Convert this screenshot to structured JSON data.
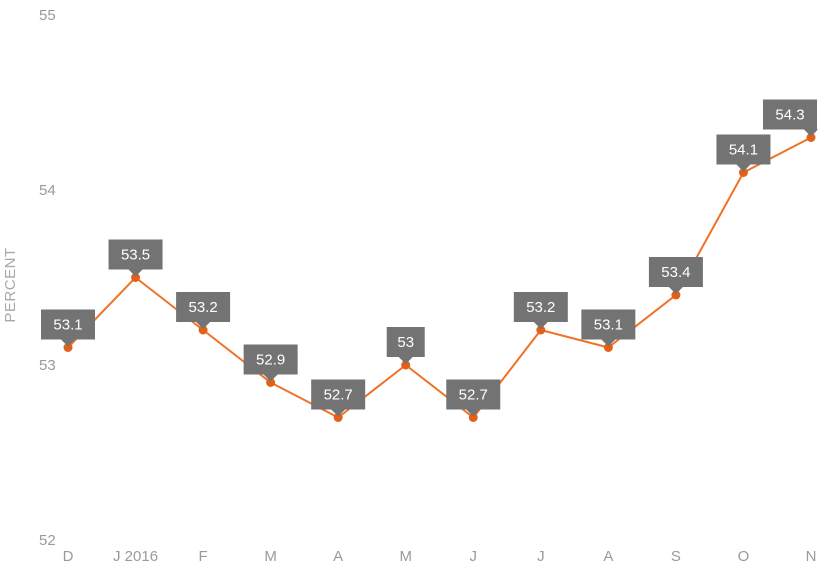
{
  "chart_data": {
    "type": "line",
    "ylabel": "PERCENT",
    "ylim": [
      52,
      55
    ],
    "yticks": [
      52,
      53,
      54,
      55
    ],
    "categories": [
      "D",
      "J 2016",
      "F",
      "M",
      "A",
      "M",
      "J",
      "J",
      "A",
      "S",
      "O",
      "N"
    ],
    "values": [
      53.1,
      53.5,
      53.2,
      52.9,
      52.7,
      53,
      52.7,
      53.2,
      53.1,
      53.4,
      54.1,
      54.3
    ],
    "data_labels": [
      "53.1",
      "53.5",
      "53.2",
      "52.9",
      "52.7",
      "53",
      "52.7",
      "53.2",
      "53.1",
      "53.4",
      "54.1",
      "54.3"
    ],
    "grid": false,
    "legend": "none",
    "colors": {
      "line": "#f07226",
      "marker": "#e2601a",
      "label_box": "#737373",
      "tick_text": "#9a9a9a"
    }
  }
}
